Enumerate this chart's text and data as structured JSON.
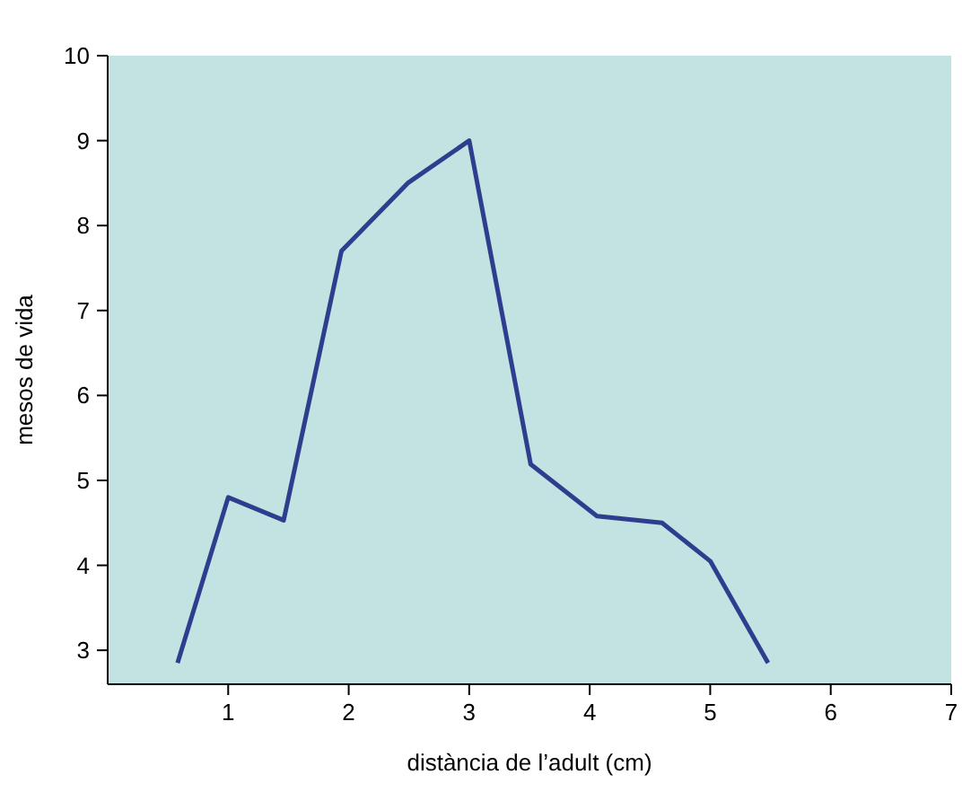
{
  "chart_data": {
    "type": "line",
    "xlabel": "distància de l’adult (cm)",
    "ylabel": "mesos de vida",
    "xlim": [
      0,
      7
    ],
    "xticks": [
      1,
      2,
      3,
      4,
      5,
      6,
      7
    ],
    "ylim": [
      2.6,
      10
    ],
    "yticks": [
      3,
      4,
      5,
      6,
      7,
      8,
      9,
      10
    ],
    "grid": false,
    "marker": "none",
    "line_style": "solid",
    "series": [
      {
        "color": "#2e3d8e",
        "x": [
          0.58,
          1.0,
          1.46,
          1.94,
          2.49,
          3.0,
          3.51,
          4.06,
          4.6,
          5.0,
          5.48
        ],
        "values": [
          2.85,
          4.8,
          4.53,
          7.7,
          8.5,
          9.0,
          5.19,
          4.58,
          4.5,
          4.05,
          2.85
        ]
      }
    ]
  }
}
